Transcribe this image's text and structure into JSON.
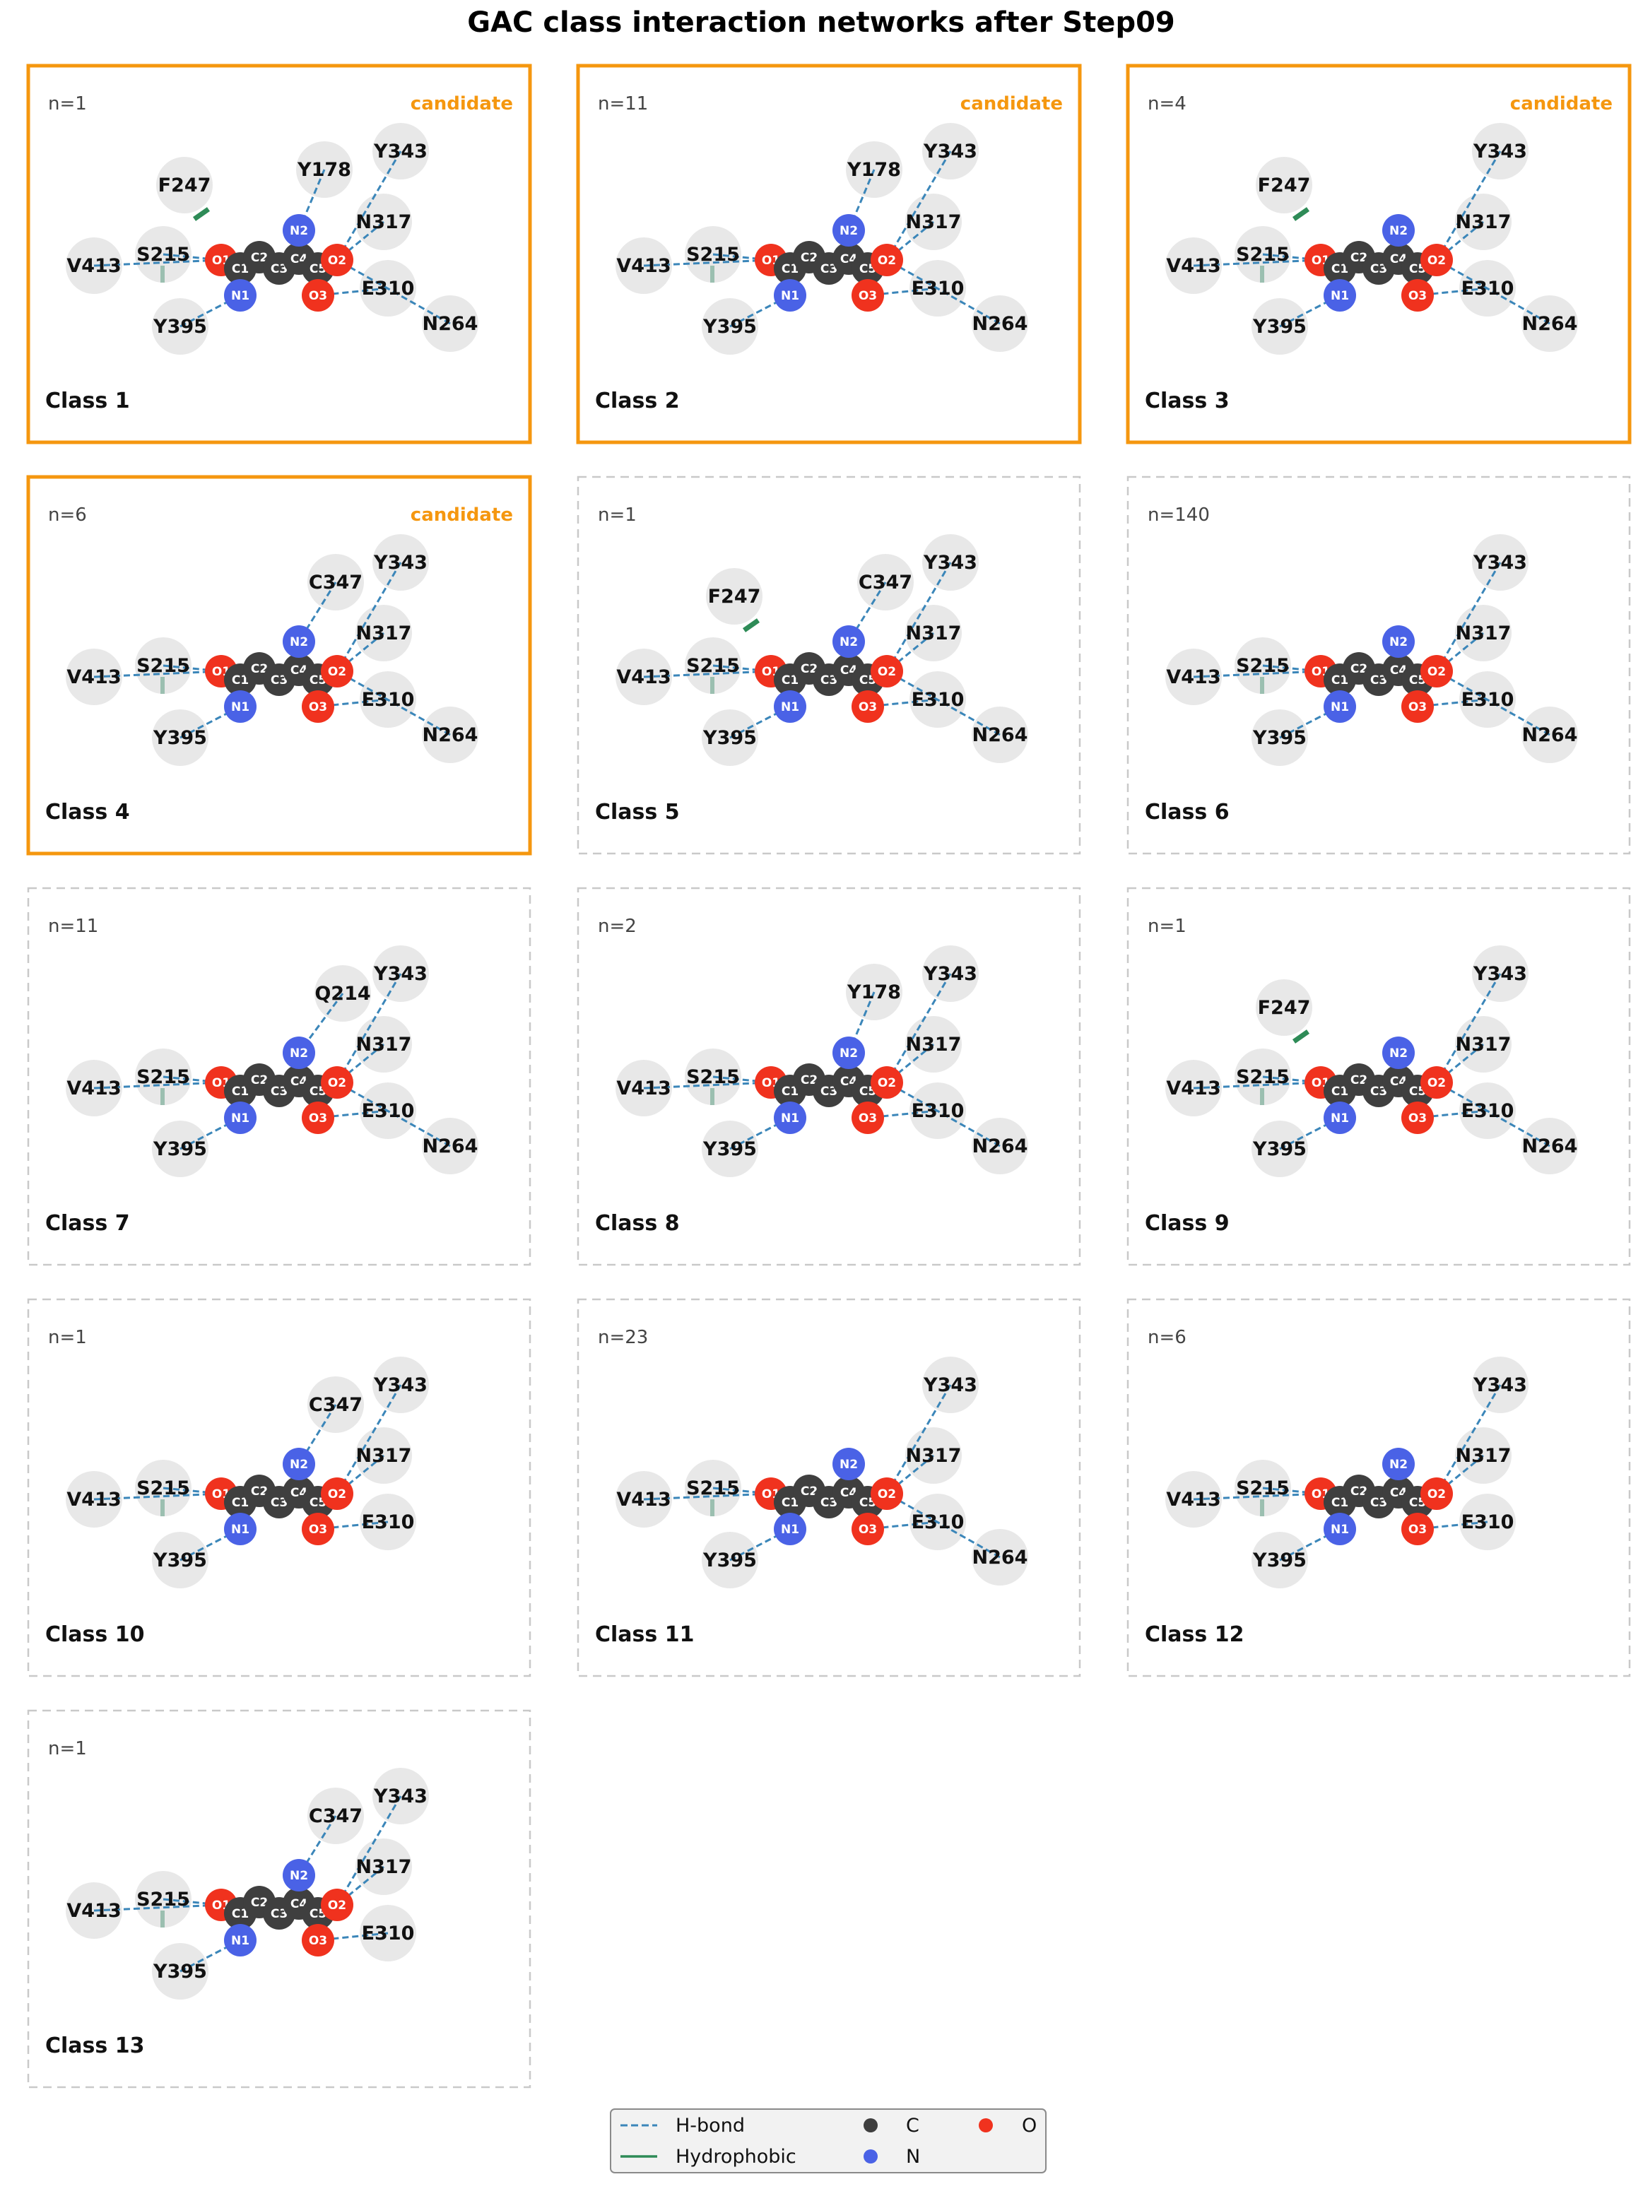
{
  "figure": {
    "title": "GAC class interaction networks after Step09",
    "badge_label": "candidate",
    "colors": {
      "carbon": "#3f3f3f",
      "nitrogen": "#4a62e6",
      "oxygen": "#f0321e",
      "hbond": "#3b86b9",
      "hydrophobic": "#2e8b57",
      "hydrophobic_light": "#9bbfb0",
      "residue_fill": "#e8e8e8",
      "candidate_border": "#f5970f",
      "plain_border": "#c9c9c9",
      "candidate_text": "#f5970f"
    }
  },
  "ligand_atoms": [
    "O1",
    "C1",
    "N1",
    "C2",
    "C3",
    "C4",
    "N2",
    "C5",
    "O2",
    "O3"
  ],
  "panels": [
    {
      "class_label": "Class 1",
      "n_label": "n=1",
      "candidate": true,
      "residues": [
        "Y343",
        "Y178",
        "F247",
        "N317",
        "S215",
        "V413",
        "E310",
        "Y395",
        "N264"
      ],
      "hydrophobic": [
        "F247"
      ]
    },
    {
      "class_label": "Class 2",
      "n_label": "n=11",
      "candidate": true,
      "residues": [
        "Y343",
        "Y178",
        "N317",
        "S215",
        "V413",
        "E310",
        "Y395",
        "N264"
      ],
      "hydrophobic": []
    },
    {
      "class_label": "Class 3",
      "n_label": "n=4",
      "candidate": true,
      "residues": [
        "Y343",
        "F247",
        "N317",
        "S215",
        "V413",
        "E310",
        "Y395",
        "N264"
      ],
      "hydrophobic": [
        "F247"
      ]
    },
    {
      "class_label": "Class 4",
      "n_label": "n=6",
      "candidate": true,
      "residues": [
        "Y343",
        "C347",
        "N317",
        "S215",
        "V413",
        "E310",
        "Y395",
        "N264"
      ],
      "hydrophobic": []
    },
    {
      "class_label": "Class 5",
      "n_label": "n=1",
      "candidate": false,
      "residues": [
        "Y343",
        "F247",
        "N317",
        "S215",
        "V413",
        "E310",
        "Y395",
        "N264",
        "C347"
      ],
      "hydrophobic": [
        "F247"
      ]
    },
    {
      "class_label": "Class 6",
      "n_label": "n=140",
      "candidate": false,
      "residues": [
        "Y343",
        "N317",
        "S215",
        "V413",
        "E310",
        "Y395",
        "N264"
      ],
      "hydrophobic": []
    },
    {
      "class_label": "Class 7",
      "n_label": "n=11",
      "candidate": false,
      "residues": [
        "Y343",
        "Q214",
        "N317",
        "S215",
        "V413",
        "E310",
        "Y395",
        "N264"
      ],
      "hydrophobic": []
    },
    {
      "class_label": "Class 8",
      "n_label": "n=2",
      "candidate": false,
      "residues": [
        "Y343",
        "Y178",
        "N317",
        "S215",
        "V413",
        "E310",
        "Y395",
        "N264"
      ],
      "hydrophobic": []
    },
    {
      "class_label": "Class 9",
      "n_label": "n=1",
      "candidate": false,
      "residues": [
        "Y343",
        "F247",
        "N317",
        "S215",
        "V413",
        "E310",
        "Y395",
        "N264"
      ],
      "hydrophobic": [
        "F247"
      ]
    },
    {
      "class_label": "Class 10",
      "n_label": "n=1",
      "candidate": false,
      "residues": [
        "Y343",
        "C347",
        "N317",
        "S215",
        "V413",
        "E310",
        "Y395"
      ],
      "hydrophobic": []
    },
    {
      "class_label": "Class 11",
      "n_label": "n=23",
      "candidate": false,
      "residues": [
        "Y343",
        "N317",
        "S215",
        "V413",
        "E310",
        "Y395",
        "N264"
      ],
      "hydrophobic": []
    },
    {
      "class_label": "Class 12",
      "n_label": "n=6",
      "candidate": false,
      "residues": [
        "Y343",
        "N317",
        "S215",
        "V413",
        "E310",
        "Y395"
      ],
      "hydrophobic": []
    },
    {
      "class_label": "Class 13",
      "n_label": "n=1",
      "candidate": false,
      "residues": [
        "Y343",
        "C347",
        "N317",
        "S215",
        "V413",
        "E310",
        "Y395"
      ],
      "hydrophobic": []
    }
  ],
  "legend": {
    "hbond_label": "H-bond",
    "hydrophobic_label": "Hydrophobic",
    "carbon_label": "C",
    "nitrogen_label": "N",
    "oxygen_label": "O"
  }
}
